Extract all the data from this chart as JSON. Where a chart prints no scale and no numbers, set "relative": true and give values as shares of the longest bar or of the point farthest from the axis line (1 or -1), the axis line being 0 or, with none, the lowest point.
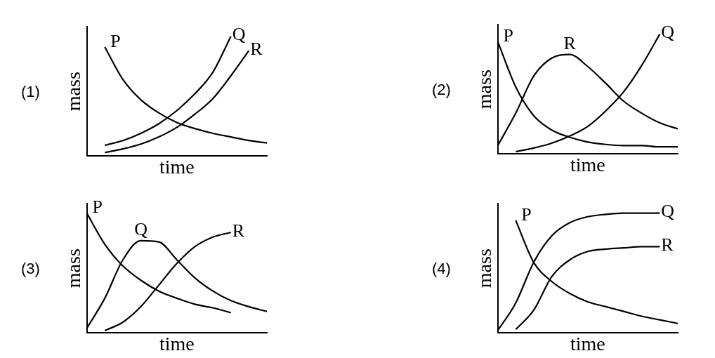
{
  "chart_data": [
    {
      "type": "line",
      "title": "(1)",
      "xlabel": "time",
      "ylabel": "mass",
      "relative": true,
      "legend": false,
      "marker": "none",
      "categories": [
        null,
        null,
        null,
        null,
        null,
        null,
        null,
        null,
        null,
        null,
        null
      ],
      "series": [
        {
          "name": "P",
          "color": "#000000",
          "values": [
            null,
            0.91,
            0.64,
            0.47,
            0.36,
            0.28,
            0.23,
            0.19,
            0.16,
            0.13,
            0.11
          ]
        },
        {
          "name": "Q",
          "color": "#000000",
          "values": [
            null,
            0.09,
            0.13,
            0.19,
            0.27,
            0.38,
            0.52,
            0.7,
            1.0,
            null,
            null
          ]
        },
        {
          "name": "R",
          "color": "#000000",
          "values": [
            null,
            0.03,
            0.06,
            0.1,
            0.16,
            0.24,
            0.35,
            0.48,
            0.67,
            0.88,
            null
          ]
        }
      ]
    },
    {
      "type": "line",
      "title": "(2)",
      "xlabel": "time",
      "ylabel": "mass",
      "relative": true,
      "legend": false,
      "marker": "none",
      "categories": [
        null,
        null,
        null,
        null,
        null,
        null,
        null,
        null,
        null,
        null,
        null
      ],
      "series": [
        {
          "name": "P",
          "color": "#000000",
          "values": [
            0.94,
            0.56,
            0.32,
            0.2,
            0.14,
            0.1,
            0.08,
            0.07,
            0.07,
            0.06,
            0.06
          ]
        },
        {
          "name": "R",
          "color": "#000000",
          "values": [
            0.07,
            0.34,
            0.65,
            0.8,
            0.83,
            0.73,
            0.59,
            0.44,
            0.34,
            0.26,
            0.21
          ]
        },
        {
          "name": "Q",
          "color": "#000000",
          "values": [
            null,
            0.02,
            0.05,
            0.09,
            0.15,
            0.23,
            0.36,
            0.52,
            0.74,
            1.0,
            null
          ]
        }
      ]
    },
    {
      "type": "line",
      "title": "(3)",
      "xlabel": "time",
      "ylabel": "mass",
      "relative": true,
      "legend": false,
      "marker": "none",
      "categories": [
        null,
        null,
        null,
        null,
        null,
        null,
        null,
        null,
        null,
        null,
        null
      ],
      "series": [
        {
          "name": "P",
          "color": "#000000",
          "values": [
            1.0,
            0.74,
            0.56,
            0.44,
            0.35,
            0.29,
            0.24,
            0.21,
            0.17,
            null,
            null
          ]
        },
        {
          "name": "Q",
          "color": "#000000",
          "values": [
            0.04,
            0.29,
            0.61,
            0.77,
            0.76,
            0.61,
            0.46,
            0.35,
            0.27,
            0.22,
            0.18
          ]
        },
        {
          "name": "R",
          "color": "#000000",
          "values": [
            null,
            0.02,
            0.09,
            0.22,
            0.4,
            0.58,
            0.72,
            0.8,
            0.84,
            null,
            null
          ]
        }
      ]
    },
    {
      "type": "line",
      "title": "(4)",
      "xlabel": "time",
      "ylabel": "mass",
      "relative": true,
      "legend": false,
      "marker": "none",
      "categories": [
        null,
        null,
        null,
        null,
        null,
        null,
        null,
        null,
        null,
        null,
        null
      ],
      "series": [
        {
          "name": "P",
          "color": "#000000",
          "values": [
            null,
            0.94,
            0.59,
            0.43,
            0.33,
            0.26,
            0.22,
            0.18,
            0.14,
            0.11,
            0.08
          ]
        },
        {
          "name": "Q",
          "color": "#000000",
          "values": [
            0.02,
            0.25,
            0.59,
            0.81,
            0.92,
            0.97,
            0.99,
            1.0,
            1.0,
            1.0,
            null
          ]
        },
        {
          "name": "R",
          "color": "#000000",
          "values": [
            null,
            0.03,
            0.19,
            0.47,
            0.61,
            0.68,
            0.7,
            0.71,
            0.72,
            0.72,
            null
          ]
        }
      ]
    }
  ]
}
